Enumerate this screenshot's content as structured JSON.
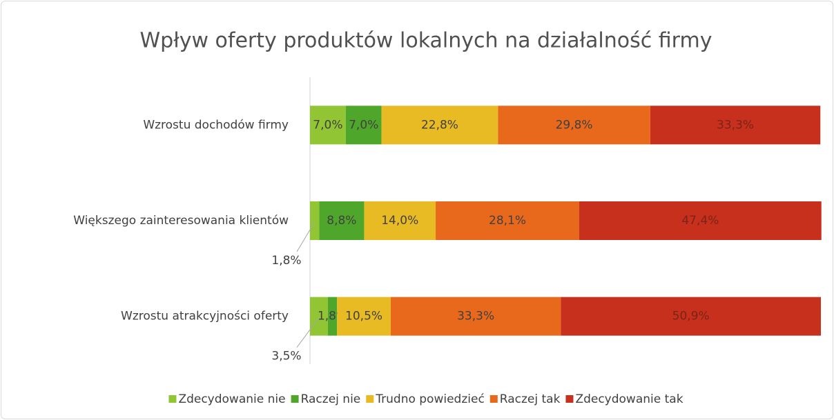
{
  "chart_data": {
    "type": "stacked_barh",
    "title": "Wpływ oferty produktów lokalnych na działalność firmy",
    "categories": [
      "Wzrostu dochodów firmy",
      "Większego zainteresowania klientów",
      "Wzrostu atrakcyjności oferty"
    ],
    "xlim": [
      0,
      100
    ],
    "legend": "bottom",
    "series": [
      {
        "name": "Zdecydowanie nie",
        "color": "#92c534",
        "values": [
          7.0,
          1.8,
          3.5
        ],
        "value_labels": [
          "7,0%",
          "1,8%",
          "3,5%"
        ]
      },
      {
        "name": "Raczej nie",
        "color": "#4ea72a",
        "values": [
          7.0,
          8.8,
          1.8
        ],
        "value_labels": [
          "7,0%",
          "8,8%",
          "1,8%"
        ]
      },
      {
        "name": "Trudno powiedzieć",
        "color": "#e8ba24",
        "values": [
          22.8,
          14.0,
          10.5
        ],
        "value_labels": [
          "22,8%",
          "14,0%",
          "10,5%"
        ]
      },
      {
        "name": "Raczej tak",
        "color": "#e8681c",
        "values": [
          29.8,
          28.1,
          33.3
        ],
        "value_labels": [
          "29,8%",
          "28,1%",
          "33,3%"
        ]
      },
      {
        "name": "Zdecydowanie tak",
        "color": "#c6301c",
        "values": [
          33.3,
          47.4,
          50.9
        ],
        "value_labels": [
          "33,3%",
          "47,4%",
          "50,9%"
        ]
      }
    ]
  }
}
